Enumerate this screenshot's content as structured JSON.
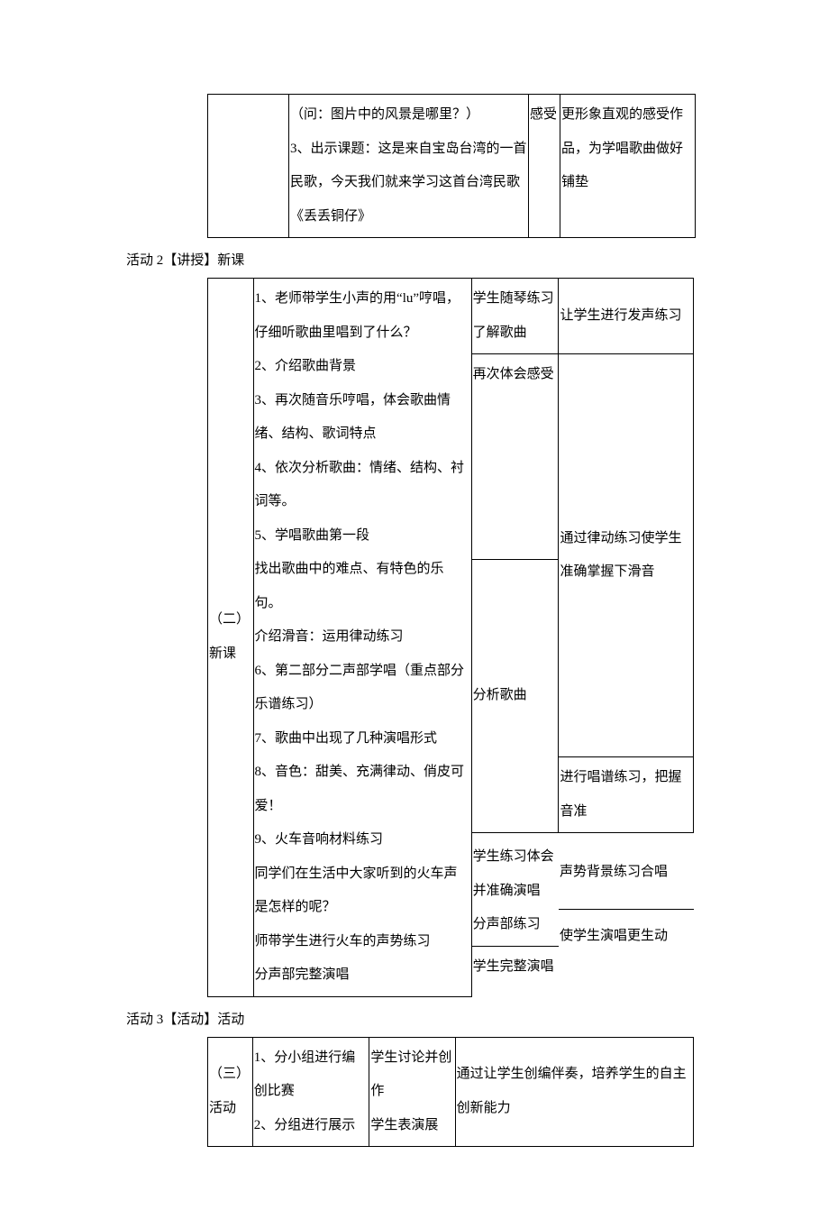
{
  "colors": {
    "background": "#ffffff",
    "text": "#000000",
    "table_border": "#000000"
  },
  "typography": {
    "font_family": "SimSun, 宋体, serif",
    "font_size_pt": 11,
    "line_height": 2.5
  },
  "table1": {
    "col2_text": "（问：图片中的风景是哪里？）\n3、出示课题：这是来自宝岛台湾的一首民歌，今天我们就来学习这首台湾民歌《丢丢铜仔》",
    "col3_text": "感受",
    "col4_text": "更形象直观的感受作品，为学唱歌曲做好铺垫"
  },
  "section2_label": "活动 2【讲授】新课",
  "table2": {
    "col1_text": "（二）\n新课",
    "col2_text": "1、老师带学生小声的用“lu”哼唱，仔细听歌曲里唱到了什么？\n2、介绍歌曲背景\n3、再次随音乐哼唱，体会歌曲情绪、结构、歌词特点\n4、依次分析歌曲：情绪、结构、衬词等。\n5、学唱歌曲第一段\n找出歌曲中的难点、有特色的乐句。\n介绍滑音：运用律动练习\n6、第二部分二声部学唱（重点部分乐谱练习）\n7、歌曲中出现了几种演唱形式\n8、音色：甜美、充满律动、俏皮可爱！\n9、火车音响材料练习\n同学们在生活中大家听到的火车声是怎样的呢？\n师带学生进行火车的声势练习\n分声部完整演唱",
    "col3_r1": "学生随琴练习\n了解歌曲",
    "col3_r2": "再次体会感受",
    "col3_r3": "分析歌曲",
    "col3_r4": "学生练习体会并准确演唱\n分声部练习",
    "col3_r5": "学生完整演唱",
    "col4_r1": "让学生进行发声练习",
    "col4_r2": "通过律动练习使学生准确掌握下滑音",
    "col4_r3": "进行唱谱练习，把握音准",
    "col4_r4": "声势背景练习合唱",
    "col4_r5": "使学生演唱更生动"
  },
  "section3_label": "活动 3【活动】活动",
  "table3": {
    "col1_text": "（三）\n活动",
    "col2_text": "1、分小组进行编创比赛\n2、分组进行展示",
    "col3_text": "学生讨论并创作\n学生表演展",
    "col4_text": "通过让学生创编伴奏，培养学生的自主创新能力"
  }
}
